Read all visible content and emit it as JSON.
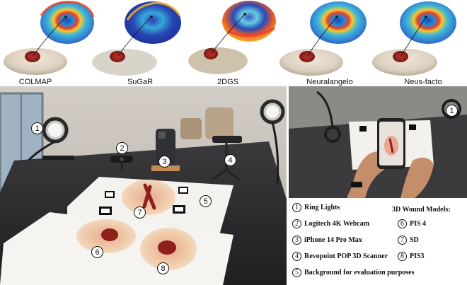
{
  "reconstruction_methods": [
    {
      "label": "COLMAP"
    },
    {
      "label": "SuGaR"
    },
    {
      "label": "2DGS"
    },
    {
      "label": "Neuralangelo"
    },
    {
      "label": "Neus-facto"
    }
  ],
  "photo_markers": {
    "main": [
      "1",
      "2",
      "3",
      "4",
      "5",
      "6",
      "7",
      "8"
    ],
    "side": [
      "1"
    ]
  },
  "legend": {
    "devices": [
      {
        "number": "1",
        "label": "Ring Lights"
      },
      {
        "number": "2",
        "label": "Logitech 4K Webcam"
      },
      {
        "number": "3",
        "label": "iPhone 14 Pro Max"
      },
      {
        "number": "4",
        "label": "Revopoint POP 3D Scanner"
      },
      {
        "number": "5",
        "label": "Background for evaluation purposes"
      }
    ],
    "models_title": "3D Wound Models:",
    "models": [
      {
        "number": "6",
        "label": "PIS 4"
      },
      {
        "number": "7",
        "label": "SD"
      },
      {
        "number": "8",
        "label": "PIS3"
      }
    ]
  },
  "colors": {
    "heatmap_low": "#2a3fb8",
    "heatmap_mid": "#3fb7d8",
    "heatmap_high": "#e8422a",
    "wound": "#8e1f1a",
    "skin": "#efc9a8",
    "table": "#2b2b2e",
    "wall": "#c9c4bd"
  }
}
